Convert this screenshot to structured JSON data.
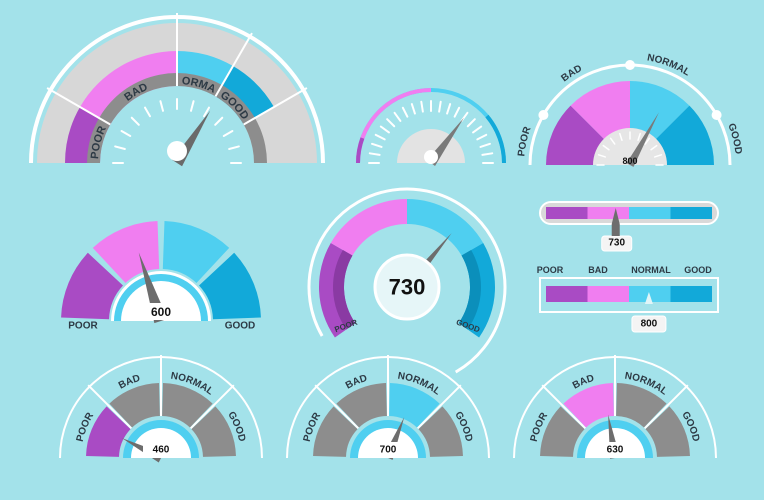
{
  "colors": {
    "poor": "#a94bc4",
    "bad": "#f07ef0",
    "normal": "#4fcff0",
    "good": "#12a9d9",
    "gray": "#8d8d8d",
    "dark_gray": "#6d6d6d",
    "light_gray": "#d7d7d7",
    "white": "#ffffff",
    "needle": "#6f6f6f"
  },
  "labels": {
    "poor": "POOR",
    "bad": "BAD",
    "normal": "NORMAL",
    "good": "GOOD"
  },
  "gauges": {
    "g1": {
      "level": 0.68
    },
    "g2": {
      "level": 0.7
    },
    "g3": {
      "value": "800",
      "level": 0.66
    },
    "g4": {
      "value": "600",
      "level": 0.4
    },
    "g5": {
      "value": "730",
      "level": 0.72
    },
    "g7": {
      "value": "460",
      "level": 0.15,
      "active": "poor"
    },
    "g8": {
      "value": "700",
      "level": 0.62,
      "active": "normal"
    },
    "g9": {
      "value": "630",
      "level": 0.45,
      "active": "bad"
    }
  },
  "bars": {
    "b1": {
      "value": "730",
      "level": 0.42
    },
    "b2": {
      "value": "800",
      "level": 0.62
    }
  }
}
